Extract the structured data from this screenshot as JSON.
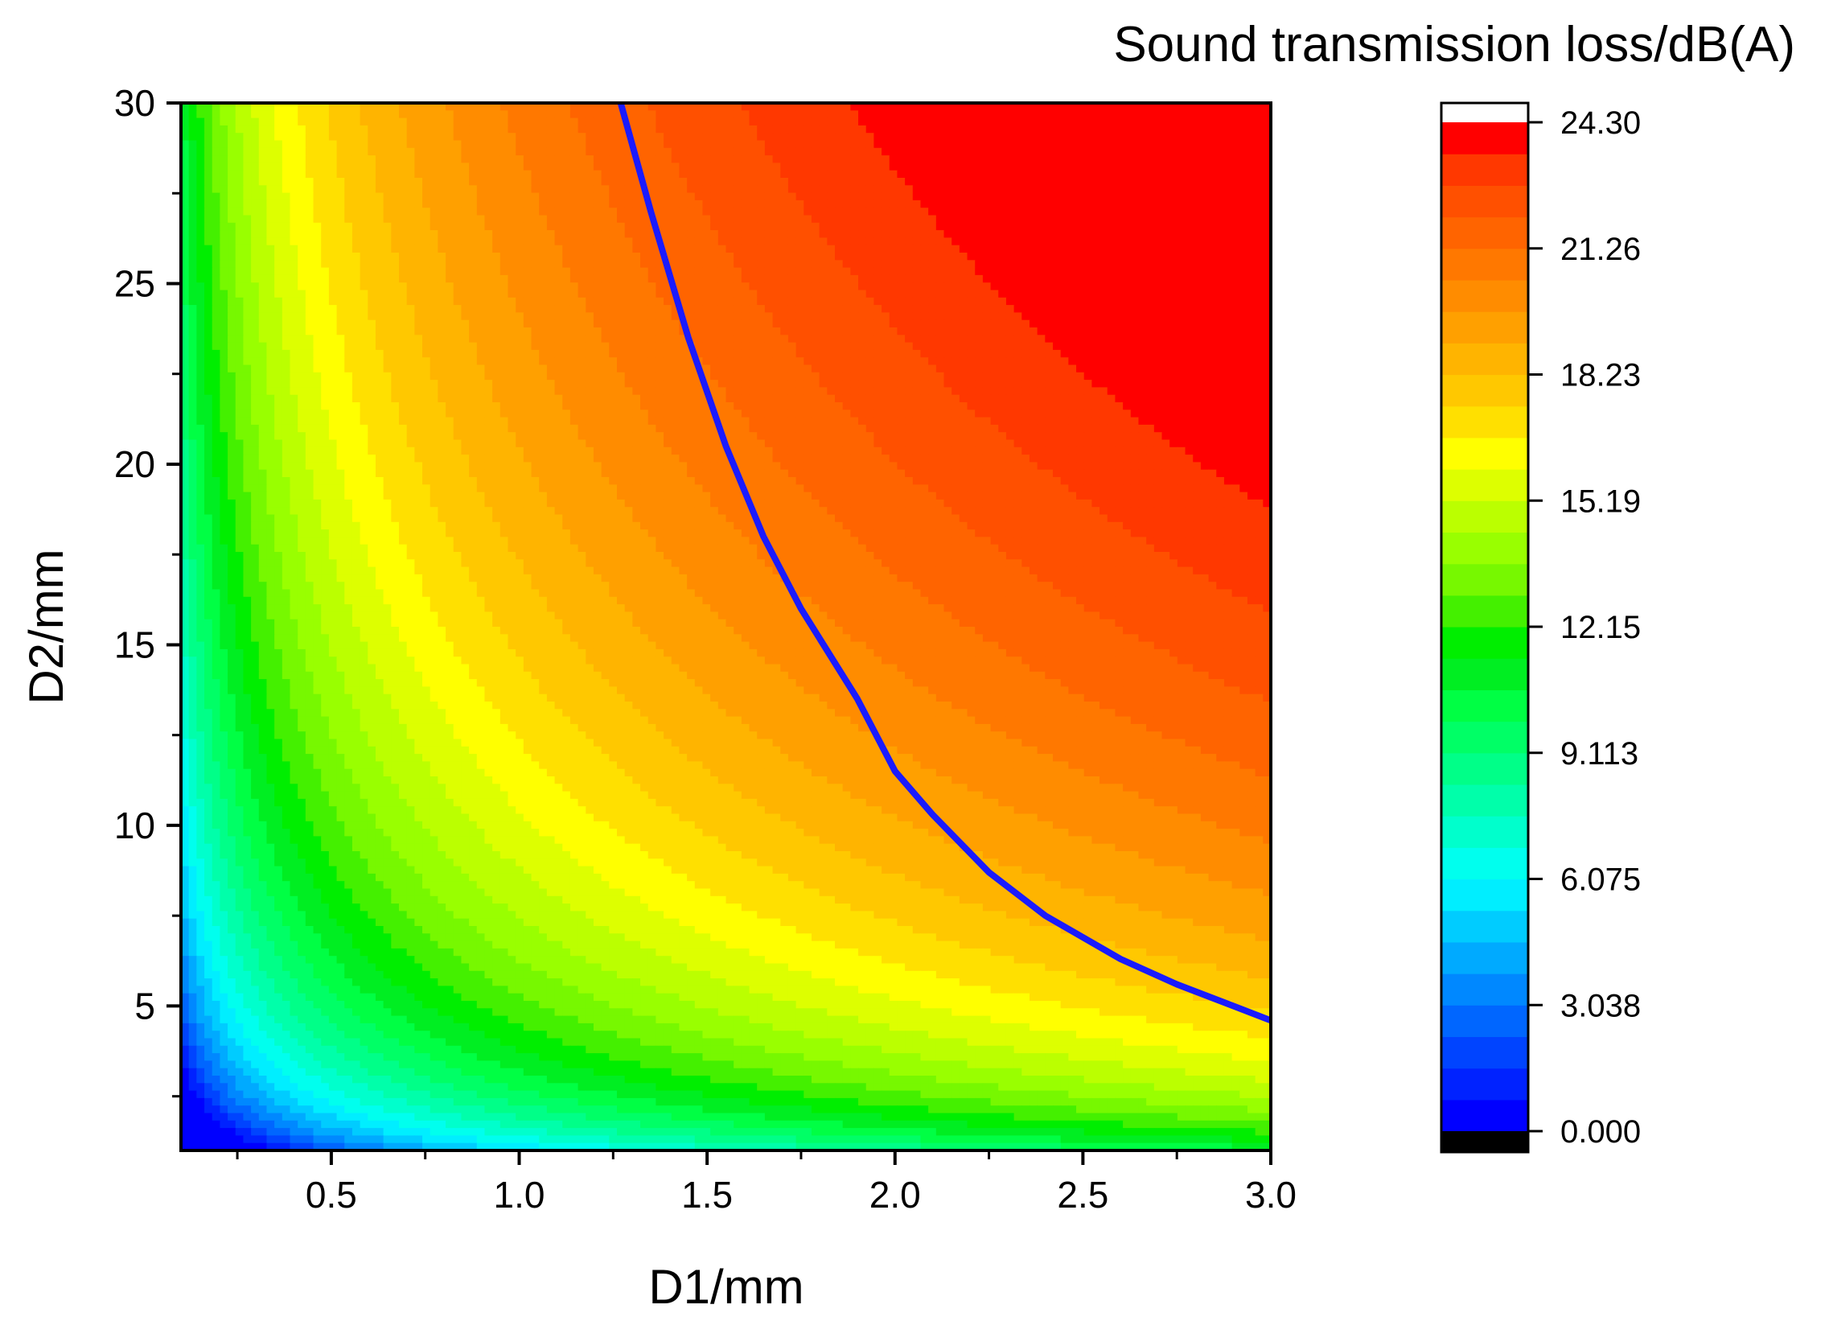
{
  "chart_data": {
    "type": "heatmap",
    "subtype": "filled-contour",
    "xlabel": "D1/mm",
    "ylabel": "D2/mm",
    "xlim": [
      0.1,
      3.0
    ],
    "ylim": [
      1.0,
      30.0
    ],
    "x_ticks": [
      "0.5",
      "1.0",
      "1.5",
      "2.0",
      "2.5",
      "3.0"
    ],
    "y_ticks": [
      "5",
      "10",
      "15",
      "20",
      "25",
      "30"
    ],
    "x_tick_values": [
      0.5,
      1.0,
      1.5,
      2.0,
      2.5,
      3.0
    ],
    "y_tick_values": [
      5,
      10,
      15,
      20,
      25,
      30
    ],
    "colorbar": {
      "title": "Sound transmission loss/dB(A)",
      "labels": [
        "24.30",
        "21.26",
        "18.23",
        "15.19",
        "12.15",
        "9.113",
        "6.075",
        "3.038",
        "0.000"
      ],
      "min": 0.0,
      "max": 24.3,
      "levels": 32,
      "colors": [
        "#0000ff",
        "#0022ff",
        "#0044ff",
        "#0066ff",
        "#0088ff",
        "#00aaff",
        "#00ccff",
        "#00eeff",
        "#00ffee",
        "#00ffcc",
        "#00ffaa",
        "#00ff88",
        "#00ff66",
        "#00ff44",
        "#00ee22",
        "#00ee00",
        "#44f000",
        "#77f800",
        "#99ff00",
        "#bbff00",
        "#ddff00",
        "#ffff00",
        "#ffe000",
        "#ffc800",
        "#ffb400",
        "#ffa000",
        "#ff8c00",
        "#ff7800",
        "#ff6400",
        "#ff5000",
        "#ff3800",
        "#ff0000"
      ],
      "below_color": "#000000",
      "above_color": "#ffffff"
    },
    "highlight_contour": {
      "color": "#1a1aff",
      "points": [
        [
          1.27,
          30.0
        ],
        [
          1.35,
          27.0
        ],
        [
          1.45,
          23.5
        ],
        [
          1.55,
          20.5
        ],
        [
          1.65,
          18.0
        ],
        [
          1.75,
          16.0
        ],
        [
          1.9,
          13.5
        ],
        [
          2.0,
          11.5
        ],
        [
          2.1,
          10.3
        ],
        [
          2.25,
          8.7
        ],
        [
          2.4,
          7.5
        ],
        [
          2.6,
          6.3
        ],
        [
          2.75,
          5.6
        ],
        [
          2.9,
          5.0
        ],
        [
          3.0,
          4.6
        ]
      ]
    }
  }
}
